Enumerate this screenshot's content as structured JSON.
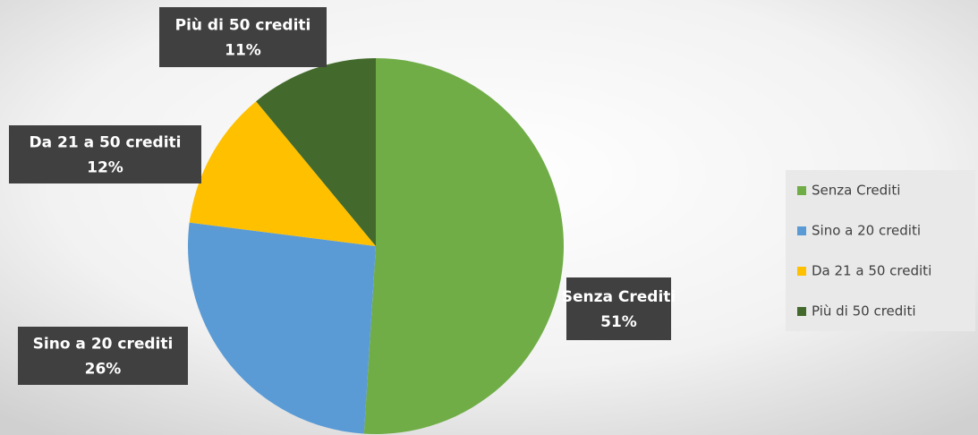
{
  "chart_data": {
    "type": "pie",
    "categories": [
      "Senza Crediti",
      "Sino a 20 crediti",
      "Da 21 a 50 crediti",
      "Più di 50 crediti"
    ],
    "values": [
      51,
      26,
      12,
      11
    ],
    "value_labels": [
      "51%",
      "26%",
      "12%",
      "11%"
    ],
    "colors": [
      "#70ad47",
      "#5b9bd5",
      "#ffc000",
      "#436a2c"
    ]
  }
}
